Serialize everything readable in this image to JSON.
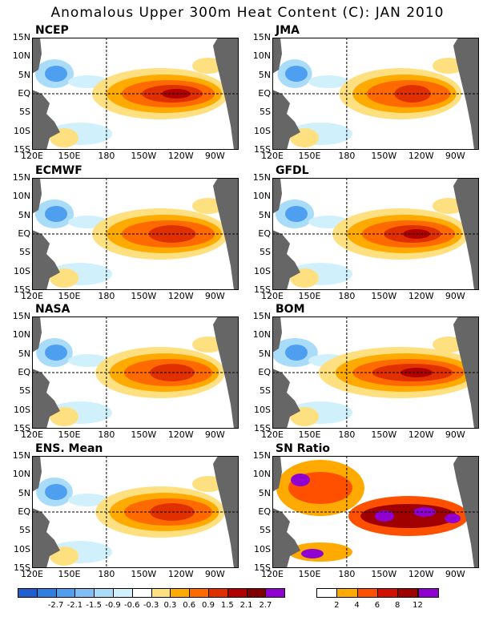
{
  "title": "Anomalous Upper 300m Heat Content (C): JAN 2010",
  "panels": [
    {
      "label": "NCEP",
      "bulge": 1.0,
      "hot": 0.9
    },
    {
      "label": "JMA",
      "bulge": 0.9,
      "hot": 0.6
    },
    {
      "label": "ECMWF",
      "bulge": 1.0,
      "hot": 0.7
    },
    {
      "label": "GFDL",
      "bulge": 1.0,
      "hot": 0.85
    },
    {
      "label": "NASA",
      "bulge": 0.95,
      "hot": 0.7
    },
    {
      "label": "BOM",
      "bulge": 1.2,
      "hot": 1.0
    },
    {
      "label": "ENS. Mean",
      "bulge": 0.95,
      "hot": 0.7
    },
    {
      "label": "SN Ratio",
      "bulge": 1.0,
      "hot": 1.0
    }
  ],
  "lat_labels": [
    "15N",
    "10N",
    "5N",
    "EQ",
    "5S",
    "10S",
    "15S"
  ],
  "lon_labels": [
    "120E",
    "150E",
    "180",
    "150W",
    "120W",
    "90W"
  ],
  "colorbar_anomaly": {
    "colors": [
      "#1f5fd0",
      "#2f7fe0",
      "#4f9ff0",
      "#7fbff5",
      "#a8dcf8",
      "#d0f0fc",
      "#ffffff",
      "#ffe080",
      "#ffaa00",
      "#ff6a00",
      "#e03000",
      "#b00000",
      "#800000",
      "#9000d0"
    ],
    "ticks": [
      "-2.7",
      "-2.1",
      "-1.5",
      "-0.9",
      "-0.6",
      "-0.3",
      "0.3",
      "0.6",
      "0.9",
      "1.5",
      "2.1",
      "2.7"
    ]
  },
  "colorbar_ratio": {
    "colors": [
      "#ffffff",
      "#ffaa00",
      "#ff5000",
      "#d01000",
      "#a00000",
      "#9000d0"
    ],
    "ticks": [
      "2",
      "4",
      "6",
      "8",
      "12"
    ]
  },
  "colors": {
    "land": "#666666",
    "background": "#ffffff"
  }
}
